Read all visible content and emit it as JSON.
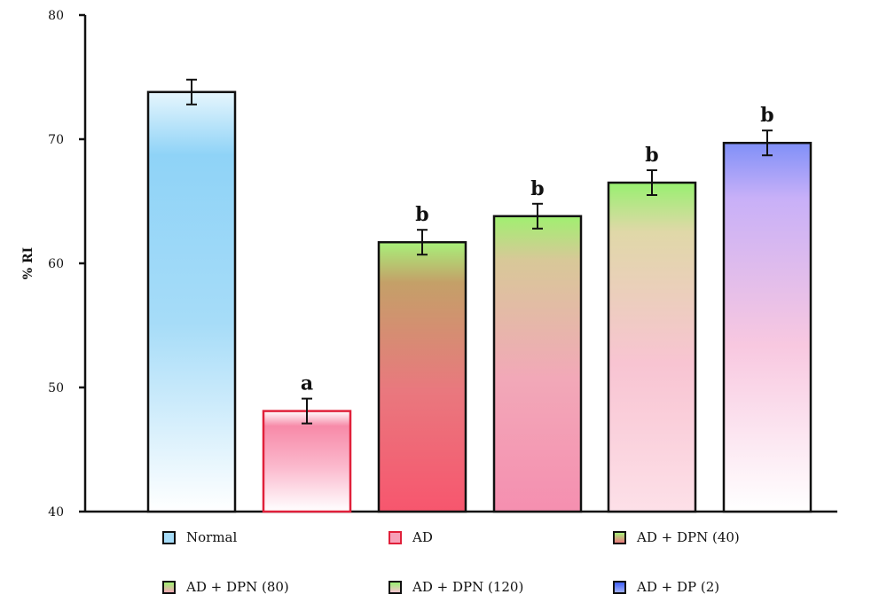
{
  "chart_data": {
    "type": "bar",
    "title": "",
    "xlabel": "",
    "ylabel": "% RI",
    "ylim": [
      40,
      80
    ],
    "yticks": [
      40,
      50,
      60,
      70,
      80
    ],
    "grid": false,
    "legend_placement": "bottom",
    "categories": [
      "Normal",
      "AD",
      "AD + DPN (40)",
      "AD + DPN (80)",
      "AD + DPN (120)",
      "AD + DP (2)"
    ],
    "values": [
      73.8,
      48.1,
      61.7,
      63.8,
      66.5,
      69.7
    ],
    "errors": [
      1.0,
      1.0,
      1.0,
      1.0,
      1.0,
      1.0
    ],
    "significance_labels": [
      "",
      "a",
      "b",
      "b",
      "b",
      "b"
    ],
    "colors": [
      {
        "border": "#111111",
        "stops": [
          "#e6f6fd",
          "#8fd3f7",
          "#a6dcf8",
          "#ffffff"
        ]
      },
      {
        "border": "#e0203a",
        "stops": [
          "#ffffff",
          "#f78aa8",
          "#fbb8cc",
          "#ffffff"
        ]
      },
      {
        "border": "#111111",
        "stops": [
          "#a8f07a",
          "#c4a068",
          "#e9787e",
          "#f7566e"
        ]
      },
      {
        "border": "#111111",
        "stops": [
          "#a0f070",
          "#d8c898",
          "#f2a8b8",
          "#f58fb0"
        ]
      },
      {
        "border": "#111111",
        "stops": [
          "#98f070",
          "#e0d8a8",
          "#f8c4d2",
          "#fde0e8"
        ]
      },
      {
        "border": "#111111",
        "stops": [
          "#8090f8",
          "#c8b0f8",
          "#f8c8e0",
          "#ffffff"
        ]
      }
    ]
  }
}
